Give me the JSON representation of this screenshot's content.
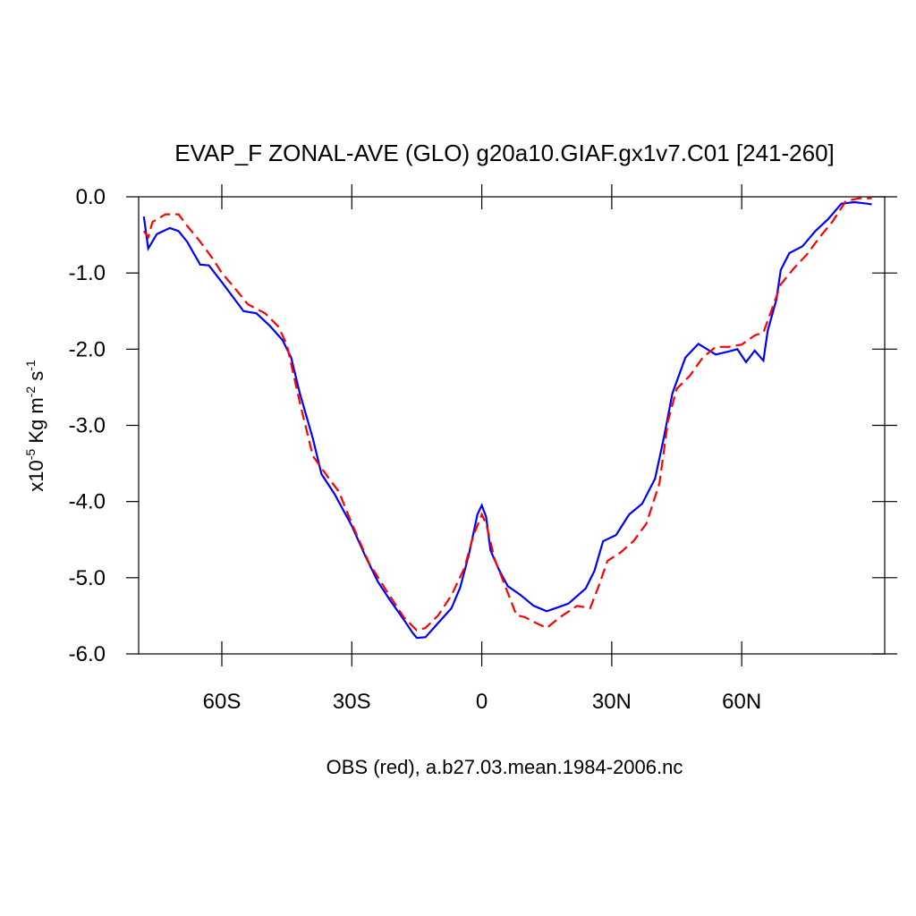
{
  "chart_data": {
    "type": "line",
    "title": "EVAP_F ZONAL-AVE (GLO) g20a10.GIAF.gx1v7.C01 [241-260]",
    "xlabel": "OBS (red), a.b27.03.mean.1984-2006.nc",
    "ylabel_parts": [
      "x10",
      "-5",
      " Kg m",
      "-2",
      " s",
      "-1"
    ],
    "xlim": [
      -79.2,
      93
    ],
    "ylim": [
      -6,
      0
    ],
    "xticks": [
      {
        "value": -60,
        "label": "60S"
      },
      {
        "value": -30,
        "label": "30S"
      },
      {
        "value": 0,
        "label": "0"
      },
      {
        "value": 30,
        "label": "30N"
      },
      {
        "value": 60,
        "label": "60N"
      }
    ],
    "yticks": [
      {
        "value": 0,
        "label": "0.0"
      },
      {
        "value": -1,
        "label": "-1.0"
      },
      {
        "value": -2,
        "label": "-2.0"
      },
      {
        "value": -3,
        "label": "-3.0"
      },
      {
        "value": -4,
        "label": "-4.0"
      },
      {
        "value": -5,
        "label": "-5.0"
      },
      {
        "value": -6,
        "label": "-6.0"
      }
    ],
    "series": [
      {
        "color": "#0000ff",
        "dash": false,
        "x": [
          -78,
          -77,
          -75,
          -72,
          -70,
          -68,
          -65,
          -63,
          -60,
          -55,
          -52,
          -49,
          -46,
          -44,
          -42,
          -39,
          -37,
          -34,
          -30,
          -27,
          -24,
          -21,
          -18,
          -16,
          -15,
          -13,
          -10,
          -7,
          -5,
          -3,
          -1,
          0,
          1,
          2,
          4,
          6,
          9,
          12,
          15,
          17,
          20,
          24,
          26,
          28,
          31,
          34,
          37,
          40,
          42,
          44,
          47,
          50,
          52,
          54,
          57,
          59,
          61,
          63,
          65,
          66,
          68,
          69,
          71,
          74,
          77,
          80,
          83,
          86,
          89,
          90
        ],
        "values": [
          -0.26,
          -0.68,
          -0.49,
          -0.41,
          -0.45,
          -0.59,
          -0.89,
          -0.9,
          -1.12,
          -1.5,
          -1.53,
          -1.69,
          -1.88,
          -2.11,
          -2.58,
          -3.17,
          -3.64,
          -3.9,
          -4.32,
          -4.7,
          -5.05,
          -5.31,
          -5.55,
          -5.72,
          -5.79,
          -5.78,
          -5.59,
          -5.4,
          -5.13,
          -4.7,
          -4.17,
          -4.05,
          -4.2,
          -4.64,
          -4.9,
          -5.11,
          -5.23,
          -5.37,
          -5.44,
          -5.4,
          -5.34,
          -5.14,
          -4.91,
          -4.52,
          -4.44,
          -4.17,
          -4.03,
          -3.7,
          -3.17,
          -2.58,
          -2.11,
          -1.93,
          -2.0,
          -2.07,
          -2.03,
          -2.0,
          -2.17,
          -2.02,
          -2.15,
          -1.76,
          -1.35,
          -0.96,
          -0.74,
          -0.65,
          -0.45,
          -0.29,
          -0.09,
          -0.07,
          -0.09,
          -0.1
        ]
      },
      {
        "color": "#ff0000",
        "dash": true,
        "x": [
          -78,
          -77,
          -76,
          -73,
          -70,
          -68,
          -65,
          -62,
          -60,
          -57,
          -54,
          -50,
          -47,
          -45,
          -42,
          -39,
          -36,
          -33,
          -30,
          -26,
          -22,
          -18,
          -15,
          -13,
          -10,
          -7,
          -4,
          -2,
          0,
          1,
          3,
          5,
          8,
          10,
          12,
          15,
          18,
          22,
          25,
          27,
          29,
          32,
          35,
          38,
          41,
          43,
          45,
          48,
          51,
          54,
          57,
          60,
          63,
          65,
          67,
          69,
          72,
          75,
          78,
          81,
          84,
          87,
          90
        ],
        "values": [
          -0.45,
          -0.53,
          -0.33,
          -0.23,
          -0.23,
          -0.38,
          -0.59,
          -0.82,
          -1.0,
          -1.2,
          -1.41,
          -1.53,
          -1.7,
          -1.94,
          -2.7,
          -3.4,
          -3.64,
          -3.87,
          -4.29,
          -4.81,
          -5.17,
          -5.52,
          -5.69,
          -5.66,
          -5.49,
          -5.23,
          -4.87,
          -4.46,
          -4.17,
          -4.29,
          -4.76,
          -5.05,
          -5.49,
          -5.52,
          -5.58,
          -5.66,
          -5.52,
          -5.37,
          -5.4,
          -5.11,
          -4.78,
          -4.67,
          -4.52,
          -4.29,
          -3.76,
          -2.94,
          -2.52,
          -2.35,
          -2.11,
          -1.97,
          -1.97,
          -1.94,
          -1.82,
          -1.78,
          -1.47,
          -1.15,
          -0.94,
          -0.76,
          -0.53,
          -0.32,
          -0.06,
          -0.02,
          -0.02
        ]
      }
    ]
  }
}
